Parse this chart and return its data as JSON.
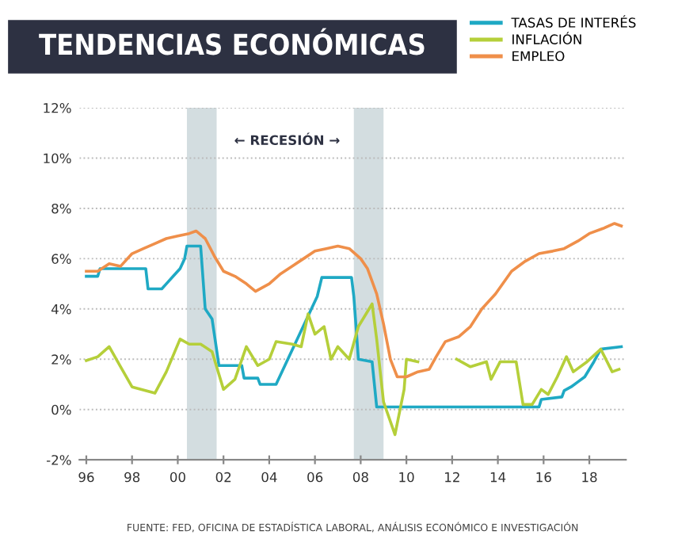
{
  "chart_data": {
    "type": "line",
    "title": "TENDENCIAS ECONÓMICAS",
    "series": [
      {
        "name": "TASAS DE INTERÉS",
        "color": "#1fa9c4",
        "x": [
          1996.0,
          1996.5,
          1996.6,
          1998.6,
          1998.7,
          1999.3,
          1999.5,
          1999.8,
          2000.1,
          2000.3,
          2000.4,
          2001.0,
          2001.2,
          2001.5,
          2001.8,
          2002.8,
          2002.9,
          2003.5,
          2003.6,
          2004.3,
          2006.1,
          2006.3,
          2007.6,
          2007.7,
          2007.9,
          2008.5,
          2008.7,
          2015.8,
          2015.9,
          2016.8,
          2016.9,
          2017.2,
          2017.5,
          2017.8,
          2018.0,
          2018.2,
          2018.5,
          2019.4
        ],
        "values": [
          5.3,
          5.3,
          5.6,
          5.6,
          4.8,
          4.8,
          5.0,
          5.3,
          5.6,
          6.0,
          6.5,
          6.5,
          4.0,
          3.6,
          1.75,
          1.75,
          1.25,
          1.25,
          1.0,
          1.0,
          4.5,
          5.25,
          5.25,
          4.5,
          2.0,
          1.9,
          0.1,
          0.1,
          0.4,
          0.5,
          0.75,
          0.9,
          1.1,
          1.3,
          1.6,
          1.9,
          2.4,
          2.5
        ]
      },
      {
        "name": "INFLACIÓN",
        "color": "#b5cf3a",
        "x": [
          1996.0,
          1996.5,
          1997.0,
          1997.5,
          1998.0,
          1999.0,
          1999.5,
          2000.1,
          2000.5,
          2001.0,
          2001.5,
          2002.0,
          2002.5,
          2003.0,
          2003.5,
          2004.0,
          2004.3,
          2005.0,
          2005.4,
          2005.7,
          2006.0,
          2006.4,
          2006.7,
          2007.0,
          2007.5,
          2007.9,
          2008.5,
          2008.7,
          2009.0,
          2009.5,
          2009.9,
          2010.0,
          2010.5,
          2011.0,
          2012.2,
          2012.8,
          2013.5,
          2013.7,
          2014.1,
          2014.8,
          2015.1,
          2015.5,
          2015.9,
          2016.2,
          2016.6,
          2017.0,
          2017.3,
          2017.9,
          2018.5,
          2019.0,
          2019.3
        ],
        "values": [
          1.95,
          2.1,
          2.5,
          1.7,
          0.9,
          0.65,
          1.5,
          2.8,
          2.6,
          2.6,
          2.3,
          0.8,
          1.2,
          2.5,
          1.75,
          2.0,
          2.7,
          2.6,
          2.5,
          3.8,
          3.0,
          3.3,
          2.0,
          2.5,
          2.0,
          3.3,
          4.2,
          2.8,
          0.3,
          -1.0,
          0.8,
          2.0,
          1.9,
          null,
          2.0,
          1.7,
          1.9,
          1.2,
          1.9,
          1.9,
          0.2,
          0.2,
          0.8,
          0.6,
          1.3,
          2.1,
          1.5,
          1.9,
          2.4,
          1.5,
          1.6
        ]
      },
      {
        "name": "EMPLEO",
        "color": "#ef8f4a",
        "x": [
          1996.0,
          1996.5,
          1997.0,
          1997.5,
          1998.0,
          1998.5,
          1999.0,
          1999.5,
          2000.0,
          2000.5,
          2000.8,
          2001.2,
          2001.6,
          2002.0,
          2002.5,
          2003.0,
          2003.4,
          2004.0,
          2004.5,
          2005.0,
          2005.5,
          2006.0,
          2006.5,
          2007.0,
          2007.5,
          2008.0,
          2008.3,
          2008.7,
          2009.0,
          2009.3,
          2009.6,
          2010.0,
          2010.5,
          2011.0,
          2011.3,
          2011.7,
          2012.3,
          2012.8,
          2013.3,
          2013.9,
          2014.6,
          2015.2,
          2015.8,
          2016.4,
          2016.9,
          2017.5,
          2018.0,
          2018.6,
          2019.1,
          2019.4
        ],
        "values": [
          5.5,
          5.5,
          5.8,
          5.7,
          6.2,
          6.4,
          6.6,
          6.8,
          6.9,
          7.0,
          7.1,
          6.8,
          6.1,
          5.5,
          5.3,
          5.0,
          4.7,
          5.0,
          5.4,
          5.7,
          6.0,
          6.3,
          6.4,
          6.5,
          6.4,
          6.0,
          5.6,
          4.6,
          3.4,
          2.0,
          1.3,
          1.3,
          1.5,
          1.6,
          2.1,
          2.7,
          2.9,
          3.3,
          4.0,
          4.6,
          5.5,
          5.9,
          6.2,
          6.3,
          6.4,
          6.7,
          7.0,
          7.2,
          7.4,
          7.3
        ]
      }
    ],
    "xlim": [
      1995.7,
      2019.6
    ],
    "xticks": [
      {
        "value": 1996,
        "label": "96"
      },
      {
        "value": 1998,
        "label": "98"
      },
      {
        "value": 2000,
        "label": "00"
      },
      {
        "value": 2002,
        "label": "02"
      },
      {
        "value": 2004,
        "label": "04"
      },
      {
        "value": 2006,
        "label": "06"
      },
      {
        "value": 2008,
        "label": "08"
      },
      {
        "value": 2010,
        "label": "10"
      },
      {
        "value": 2012,
        "label": "12"
      },
      {
        "value": 2014,
        "label": "14"
      },
      {
        "value": 2016,
        "label": "16"
      },
      {
        "value": 2018,
        "label": "18"
      }
    ],
    "ylim": [
      -2,
      12
    ],
    "yticks": [
      {
        "value": -2,
        "label": "-2%"
      },
      {
        "value": 0,
        "label": "0%"
      },
      {
        "value": 2,
        "label": "2%"
      },
      {
        "value": 4,
        "label": "4%"
      },
      {
        "value": 6,
        "label": "6%"
      },
      {
        "value": 8,
        "label": "8%"
      },
      {
        "value": 10,
        "label": "10%"
      },
      {
        "value": 12,
        "label": "12%"
      }
    ],
    "bands": [
      {
        "axis": "x",
        "from": 2000.4,
        "to": 2001.7,
        "color": "#d3dde0"
      },
      {
        "axis": "x",
        "from": 2007.7,
        "to": 2009.0,
        "color": "#d3dde0"
      }
    ],
    "annotations": [
      "← RECESIÓN →",
      "FUENTE: FED, OFICINA DE ESTADÍSTICA LABORAL, ANÁLISIS ECONÓMICO E INVESTIGACIÓN"
    ],
    "grid": "y",
    "legend": "top right"
  }
}
